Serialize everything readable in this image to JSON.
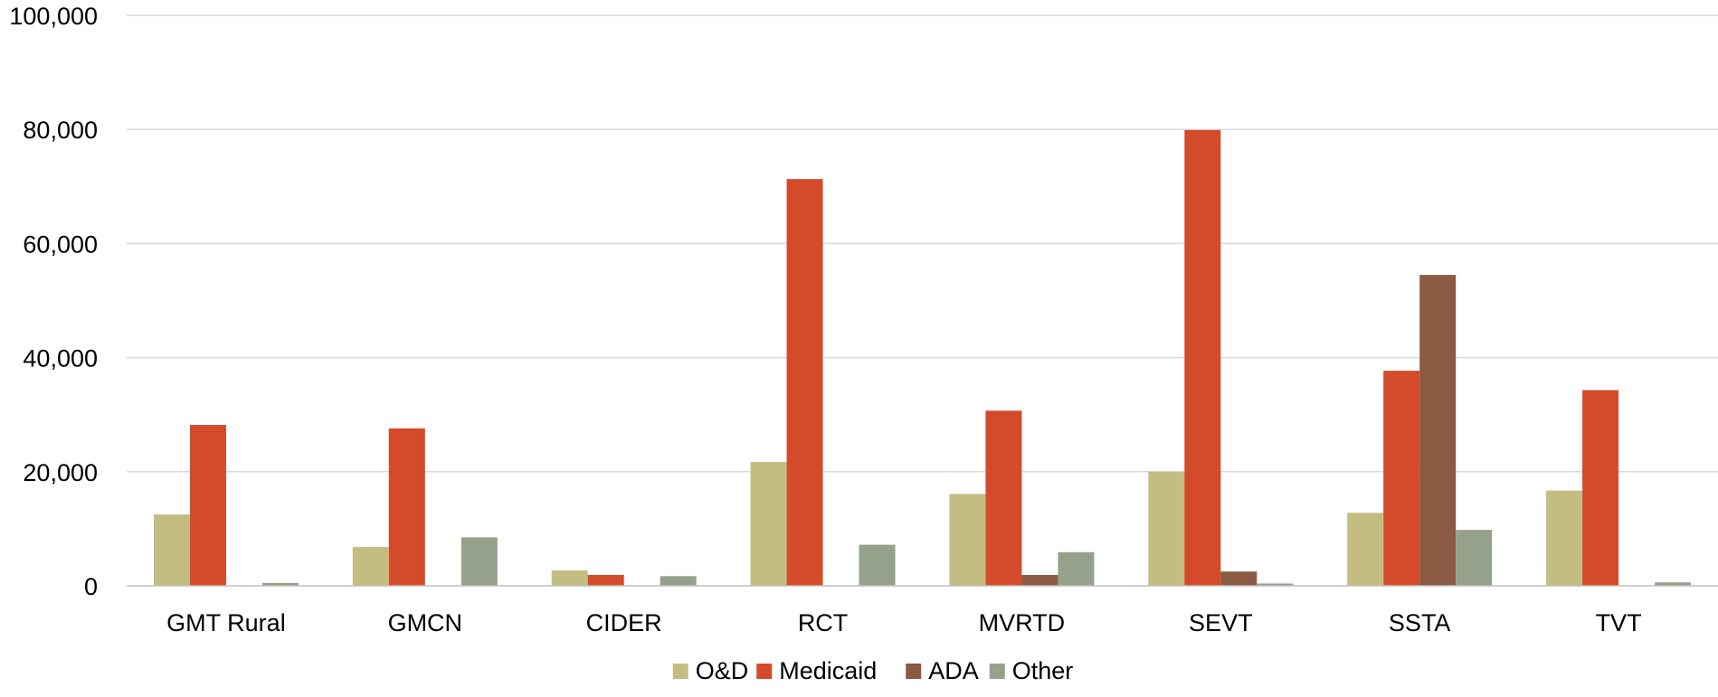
{
  "chart_data": {
    "type": "bar",
    "title": "",
    "xlabel": "",
    "ylabel": "",
    "categories": [
      "GMT Rural",
      "GMCN",
      "CIDER",
      "RCT",
      "MVRTD",
      "SEVT",
      "SSTA",
      "TVT"
    ],
    "series": [
      {
        "name": "O&D",
        "color": "#c4bd82",
        "values": [
          12500,
          6800,
          2700,
          21700,
          16100,
          20000,
          12800,
          16700
        ]
      },
      {
        "name": "Medicaid",
        "color": "#d34b2b",
        "values": [
          28200,
          27600,
          1900,
          71300,
          30700,
          79900,
          37700,
          34300
        ]
      },
      {
        "name": "ADA",
        "color": "#8a5a42",
        "values": [
          0,
          0,
          0,
          0,
          1900,
          2500,
          54500,
          0
        ]
      },
      {
        "name": "Other",
        "color": "#95a18a",
        "values": [
          500,
          8500,
          1700,
          7200,
          5900,
          400,
          9800,
          600
        ]
      }
    ],
    "ylim": [
      0,
      100000
    ],
    "yticks": [
      0,
      20000,
      40000,
      60000,
      80000,
      100000
    ],
    "ytick_labels": [
      "0",
      "20,000",
      "40,000",
      "60,000",
      "80,000",
      "100,000"
    ],
    "grid": true,
    "legend_position": "bottom-center"
  }
}
